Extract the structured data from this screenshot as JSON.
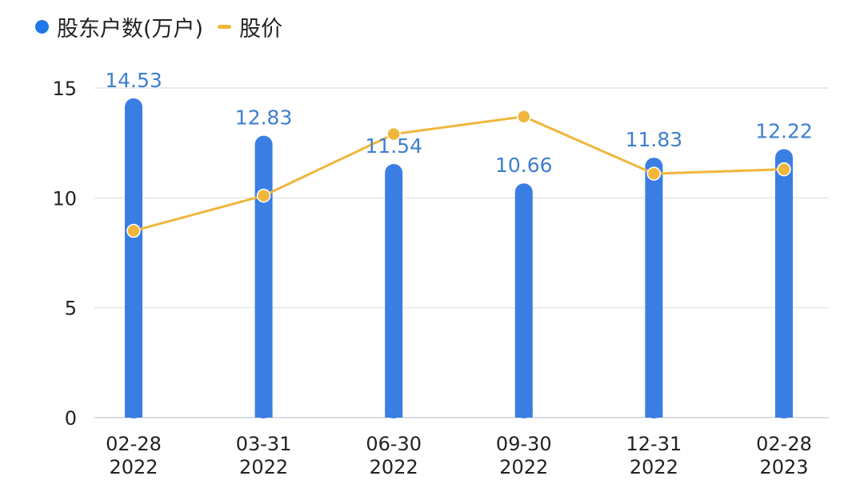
{
  "chart_data": {
    "type": "bar",
    "categories": [
      [
        "02-28",
        "2022"
      ],
      [
        "03-31",
        "2022"
      ],
      [
        "06-30",
        "2022"
      ],
      [
        "09-30",
        "2022"
      ],
      [
        "12-31",
        "2022"
      ],
      [
        "02-28",
        "2023"
      ]
    ],
    "series": [
      {
        "name": "股东户数(万户)",
        "kind": "bar",
        "color": "#3a7ee4",
        "values": [
          14.53,
          12.83,
          11.54,
          10.66,
          11.83,
          12.22
        ],
        "labels": [
          "14.53",
          "12.83",
          "11.54",
          "10.66",
          "11.83",
          "12.22"
        ],
        "label_color": "#3f7fcf"
      },
      {
        "name": "股价",
        "kind": "line",
        "color": "#f0b63c",
        "values": [
          8.5,
          10.1,
          12.9,
          13.7,
          11.1,
          11.3
        ]
      }
    ],
    "y_ticks": [
      "0",
      "5",
      "10",
      "15"
    ],
    "ylim": [
      0,
      15
    ],
    "grid": true,
    "legend_position": "top-left"
  }
}
